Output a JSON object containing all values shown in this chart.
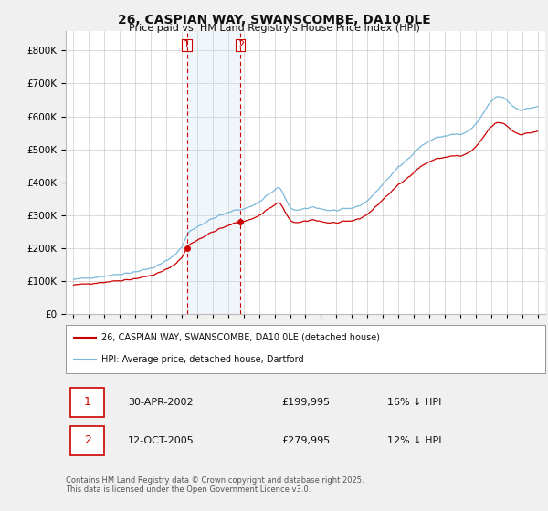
{
  "title": "26, CASPIAN WAY, SWANSCOMBE, DA10 0LE",
  "subtitle": "Price paid vs. HM Land Registry's House Price Index (HPI)",
  "background_color": "#f0f0f0",
  "plot_bg_color": "#ffffff",
  "legend_label_red": "26, CASPIAN WAY, SWANSCOMBE, DA10 0LE (detached house)",
  "legend_label_blue": "HPI: Average price, detached house, Dartford",
  "footnote": "Contains HM Land Registry data © Crown copyright and database right 2025.\nThis data is licensed under the Open Government Licence v3.0.",
  "transaction1_date": "30-APR-2002",
  "transaction1_price": "£199,995",
  "transaction1_hpi": "16% ↓ HPI",
  "transaction2_date": "12-OCT-2005",
  "transaction2_price": "£279,995",
  "transaction2_hpi": "12% ↓ HPI",
  "sale1_year": 2002.33,
  "sale1_price": 199995,
  "sale2_year": 2005.79,
  "sale2_price": 279995,
  "ylim": [
    0,
    860000
  ],
  "xlim": [
    1994.5,
    2025.5
  ],
  "xticks": [
    1995,
    1996,
    1997,
    1998,
    1999,
    2000,
    2001,
    2002,
    2003,
    2004,
    2005,
    2006,
    2007,
    2008,
    2009,
    2010,
    2011,
    2012,
    2013,
    2014,
    2015,
    2016,
    2017,
    2018,
    2019,
    2020,
    2021,
    2022,
    2023,
    2024,
    2025
  ],
  "ytick_vals": [
    0,
    100000,
    200000,
    300000,
    400000,
    500000,
    600000,
    700000,
    800000
  ],
  "ytick_labels": [
    "£0",
    "£100K",
    "£200K",
    "£300K",
    "£400K",
    "£500K",
    "£600K",
    "£700K",
    "£800K"
  ],
  "hpi_color": "#7ab8d9",
  "red_color": "#cc0000",
  "vline_color": "#cc0000",
  "span_color": "#c8dff0"
}
